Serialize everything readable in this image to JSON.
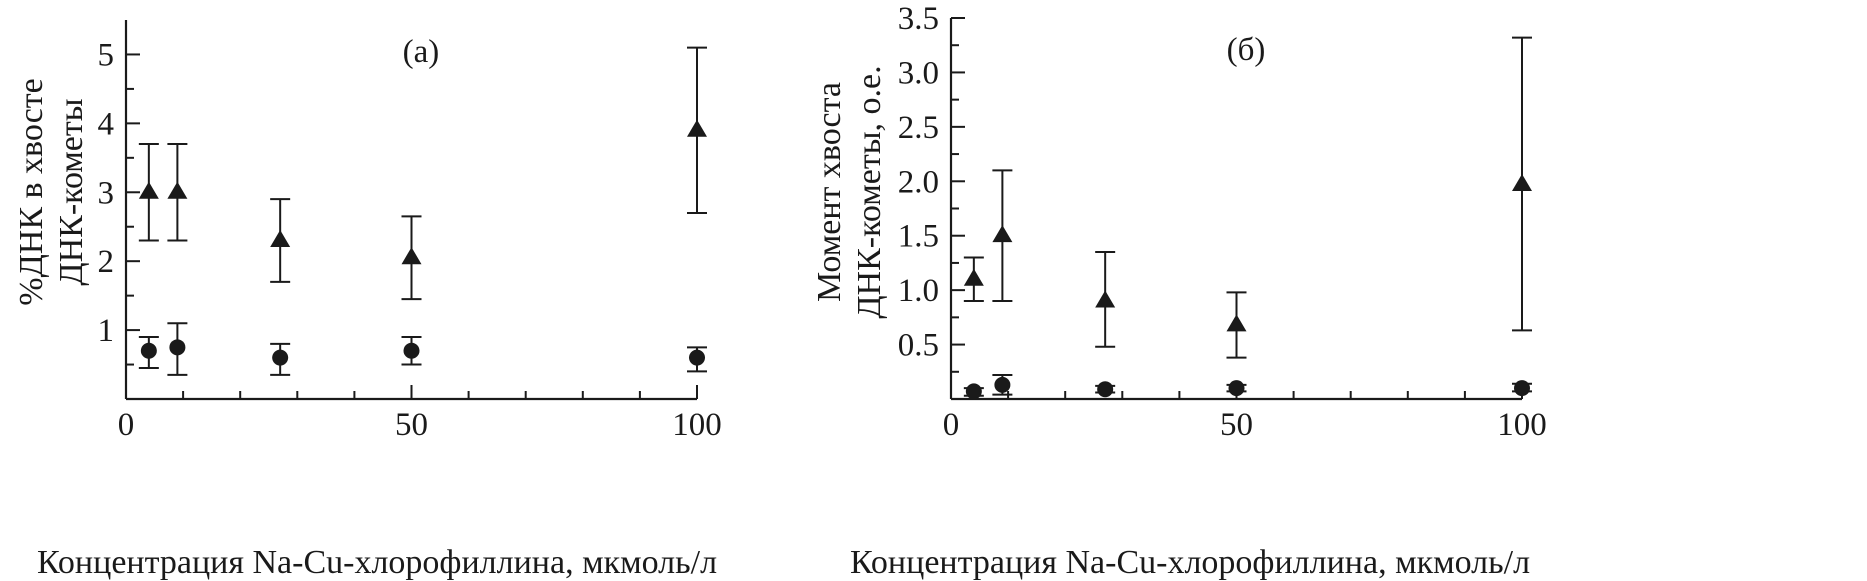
{
  "chart_data": [
    {
      "type": "scatter",
      "panel_label": "(а)",
      "ylabel_lines": [
        "%ДНК в хвосте",
        "ДНК-кометы"
      ],
      "xlabel": "Концентрация Na-Cu-хлорофиллина, мкмоль/л",
      "xlim": [
        0,
        100
      ],
      "ylim": [
        0,
        5.5
      ],
      "x_tick_labels": [
        "0",
        "50",
        "100"
      ],
      "x_tick_values": [
        0,
        50,
        100
      ],
      "x_minor_ticks": [
        10,
        20,
        30,
        40,
        60,
        70,
        80,
        90
      ],
      "y_tick_labels": [
        "1",
        "2",
        "3",
        "4",
        "5"
      ],
      "y_tick_values": [
        1,
        2,
        3,
        4,
        5
      ],
      "y_minor_ticks": [
        0.5,
        1.5,
        2.5,
        3.5,
        4.5
      ],
      "grid": false,
      "legend": "none",
      "series": [
        {
          "marker": "triangle",
          "points": [
            {
              "x": 4,
              "y": 3.0,
              "low": 2.3,
              "high": 3.7
            },
            {
              "x": 9,
              "y": 3.0,
              "low": 2.3,
              "high": 3.7
            },
            {
              "x": 27,
              "y": 2.3,
              "low": 1.7,
              "high": 2.9
            },
            {
              "x": 50,
              "y": 2.05,
              "low": 1.45,
              "high": 2.65
            },
            {
              "x": 100,
              "y": 3.9,
              "low": 2.7,
              "high": 5.1
            }
          ]
        },
        {
          "marker": "circle",
          "points": [
            {
              "x": 4,
              "y": 0.7,
              "low": 0.45,
              "high": 0.9
            },
            {
              "x": 9,
              "y": 0.75,
              "low": 0.35,
              "high": 1.1
            },
            {
              "x": 27,
              "y": 0.6,
              "low": 0.35,
              "high": 0.8
            },
            {
              "x": 50,
              "y": 0.7,
              "low": 0.5,
              "high": 0.9
            },
            {
              "x": 100,
              "y": 0.6,
              "low": 0.4,
              "high": 0.75
            }
          ]
        }
      ]
    },
    {
      "type": "scatter",
      "panel_label": "(б)",
      "ylabel_lines": [
        "Момент хвоста",
        "ДНК-кометы, о.е."
      ],
      "xlabel": "Концентрация Na-Cu-хлорофиллина, мкмоль/л",
      "xlim": [
        0,
        100
      ],
      "ylim": [
        0,
        3.5
      ],
      "x_tick_labels": [
        "0",
        "50",
        "100"
      ],
      "x_tick_values": [
        0,
        50,
        100
      ],
      "x_minor_ticks": [
        10,
        20,
        30,
        40,
        60,
        70,
        80,
        90
      ],
      "y_tick_labels": [
        "0.5",
        "1.0",
        "1.5",
        "2.0",
        "2.5",
        "3.0",
        "3.5"
      ],
      "y_tick_values": [
        0.5,
        1.0,
        1.5,
        2.0,
        2.5,
        3.0,
        3.5
      ],
      "y_minor_ticks": [
        0.25,
        0.75,
        1.25,
        1.75,
        2.25,
        2.75,
        3.25
      ],
      "grid": false,
      "legend": "none",
      "series": [
        {
          "marker": "triangle",
          "points": [
            {
              "x": 4,
              "y": 1.1,
              "low": 0.9,
              "high": 1.3
            },
            {
              "x": 9,
              "y": 1.5,
              "low": 0.9,
              "high": 2.1
            },
            {
              "x": 27,
              "y": 0.9,
              "low": 0.48,
              "high": 1.35
            },
            {
              "x": 50,
              "y": 0.68,
              "low": 0.38,
              "high": 0.98
            },
            {
              "x": 100,
              "y": 1.97,
              "low": 0.63,
              "high": 3.32
            }
          ]
        },
        {
          "marker": "circle",
          "points": [
            {
              "x": 4,
              "y": 0.07,
              "low": 0.03,
              "high": 0.1
            },
            {
              "x": 9,
              "y": 0.13,
              "low": 0.04,
              "high": 0.22
            },
            {
              "x": 27,
              "y": 0.09,
              "low": 0.06,
              "high": 0.12
            },
            {
              "x": 50,
              "y": 0.1,
              "low": 0.07,
              "high": 0.13
            },
            {
              "x": 100,
              "y": 0.1,
              "low": 0.07,
              "high": 0.14
            }
          ]
        }
      ]
    }
  ]
}
